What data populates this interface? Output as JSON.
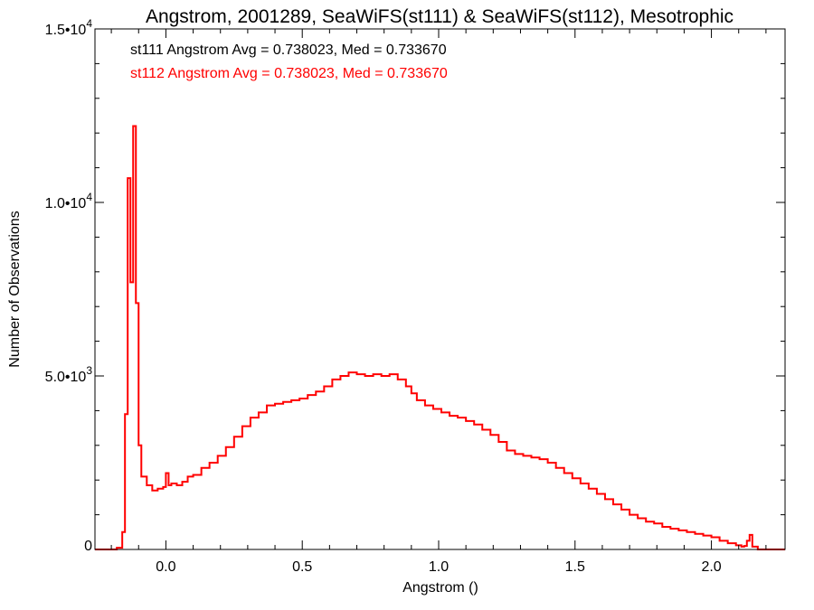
{
  "chart_data": {
    "type": "line",
    "title": "Angstrom, 2001289, SeaWiFS(st111) & SeaWiFS(st112), Mesotrophic",
    "xlabel": "Angstrom ()",
    "ylabel": "Number of Observations",
    "xlim": [
      -0.26,
      2.27
    ],
    "ylim": [
      0,
      15000
    ],
    "x_ticks": [
      0.0,
      0.5,
      1.0,
      1.5,
      2.0
    ],
    "x_tick_labels": [
      "0.0",
      "0.5",
      "1.0",
      "1.5",
      "2.0"
    ],
    "y_ticks": [
      0,
      5000,
      10000,
      15000
    ],
    "y_tick_labels": [
      {
        "mantissa": "0",
        "exponent": ""
      },
      {
        "mantissa": "5.0•10",
        "exponent": "3"
      },
      {
        "mantissa": "1.0•10",
        "exponent": "4"
      },
      {
        "mantissa": "1.5•10",
        "exponent": "4"
      }
    ],
    "grid": false,
    "annotations": [
      {
        "text": "st111 Angstrom Avg = 0.738023, Med = 0.733670",
        "color": "#000000"
      },
      {
        "text": "st112 Angstrom Avg = 0.738023, Med = 0.733670",
        "color": "#ff0000"
      }
    ],
    "series": [
      {
        "color": "#ff0000",
        "style": "step",
        "x": [
          -0.26,
          -0.18,
          -0.16,
          -0.15,
          -0.14,
          -0.13,
          -0.12,
          -0.11,
          -0.1,
          -0.09,
          -0.07,
          -0.05,
          -0.03,
          -0.01,
          0.0,
          0.01,
          0.02,
          0.04,
          0.06,
          0.08,
          0.1,
          0.13,
          0.16,
          0.19,
          0.22,
          0.25,
          0.28,
          0.31,
          0.34,
          0.37,
          0.4,
          0.43,
          0.46,
          0.49,
          0.52,
          0.55,
          0.58,
          0.61,
          0.64,
          0.67,
          0.7,
          0.73,
          0.76,
          0.79,
          0.82,
          0.85,
          0.88,
          0.9,
          0.92,
          0.95,
          0.98,
          1.01,
          1.04,
          1.07,
          1.1,
          1.13,
          1.16,
          1.19,
          1.22,
          1.25,
          1.28,
          1.31,
          1.34,
          1.37,
          1.4,
          1.43,
          1.46,
          1.49,
          1.52,
          1.55,
          1.58,
          1.61,
          1.64,
          1.67,
          1.7,
          1.73,
          1.76,
          1.79,
          1.82,
          1.85,
          1.88,
          1.91,
          1.94,
          1.97,
          2.0,
          2.03,
          2.06,
          2.09,
          2.11,
          2.12,
          2.13,
          2.14,
          2.15,
          2.17,
          2.27
        ],
        "y": [
          0,
          50,
          500,
          3900,
          10700,
          7700,
          12200,
          7100,
          3000,
          2100,
          1850,
          1700,
          1750,
          1800,
          2200,
          1850,
          1900,
          1850,
          1950,
          2100,
          2150,
          2350,
          2500,
          2700,
          2950,
          3250,
          3550,
          3800,
          3950,
          4150,
          4200,
          4250,
          4300,
          4350,
          4450,
          4550,
          4700,
          4900,
          5000,
          5100,
          5050,
          5000,
          5050,
          5000,
          5050,
          4900,
          4700,
          4500,
          4300,
          4150,
          4050,
          3950,
          3850,
          3800,
          3700,
          3600,
          3450,
          3300,
          3100,
          2850,
          2750,
          2700,
          2650,
          2600,
          2500,
          2350,
          2200,
          2050,
          1900,
          1750,
          1600,
          1450,
          1300,
          1150,
          1000,
          900,
          800,
          750,
          650,
          600,
          550,
          500,
          450,
          400,
          350,
          250,
          180,
          120,
          80,
          100,
          250,
          420,
          80,
          0,
          0
        ]
      }
    ]
  }
}
